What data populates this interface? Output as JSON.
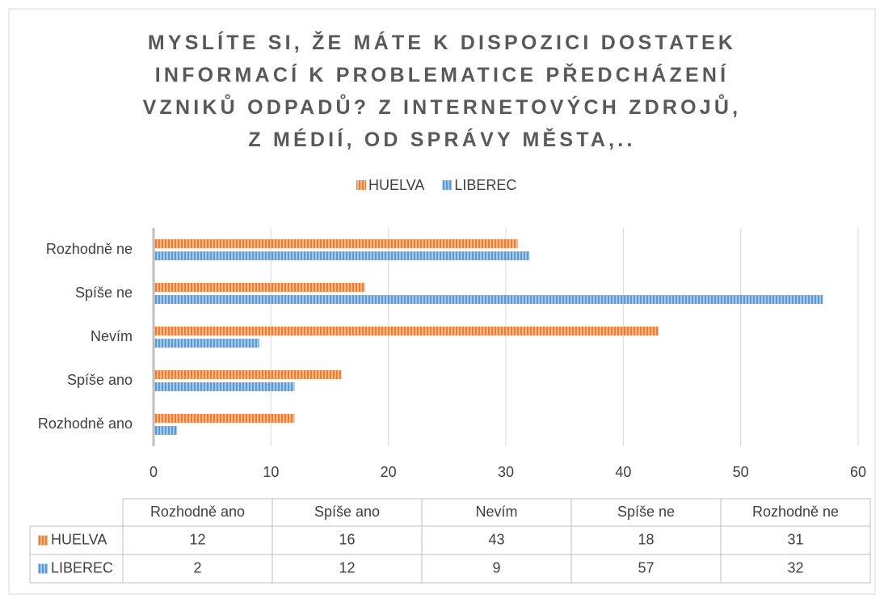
{
  "chart_data": {
    "type": "bar",
    "orientation": "horizontal",
    "title": "MYSLÍTE SI, ŽE MÁTE K DISPOZICI DOSTATEK INFORMACÍ K PROBLEMATICE PŘEDCHÁZENÍ VZNIKŮ ODPADŮ? Z INTERNETOVÝCH ZDROJŮ, Z MÉDIÍ, OD SPRÁVY MĚSTA,..",
    "categories": [
      "Rozhodně ano",
      "Spíše ano",
      "Nevím",
      "Spíše ne",
      "Rozhodně ne"
    ],
    "series": [
      {
        "name": "HUELVA",
        "color": "#ed7d31",
        "values": [
          12,
          16,
          43,
          18,
          31
        ]
      },
      {
        "name": "LIBEREC",
        "color": "#5b9bd5",
        "values": [
          2,
          12,
          9,
          57,
          32
        ]
      }
    ],
    "xlim": [
      0,
      60
    ],
    "xticks": [
      0,
      10,
      20,
      30,
      40,
      50,
      60
    ],
    "grid": true,
    "legend": "top",
    "data_table": true
  }
}
